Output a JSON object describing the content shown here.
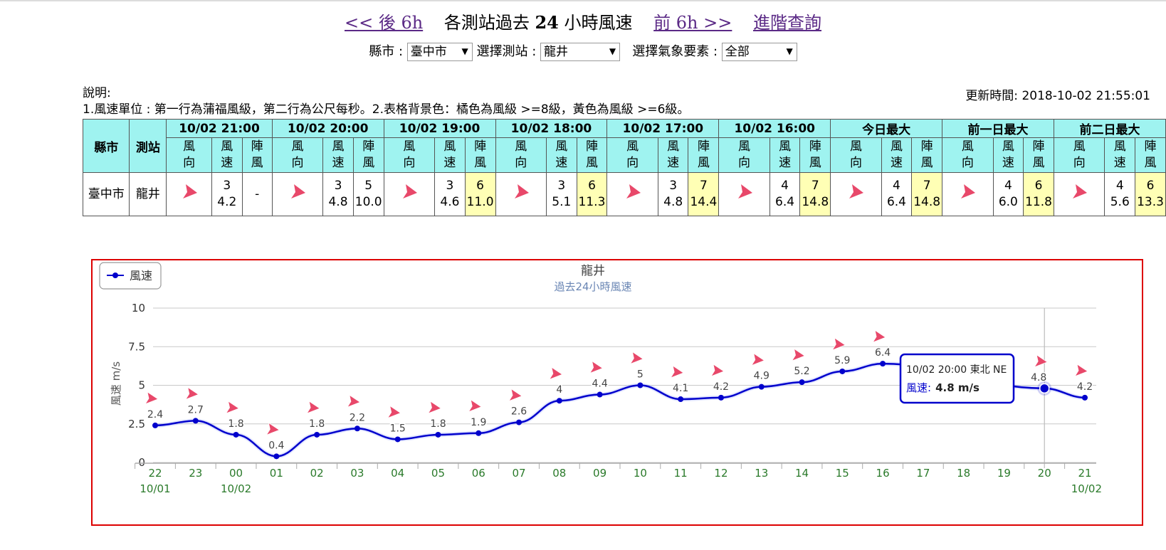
{
  "nav": {
    "back_link": "<< 後 6h",
    "title_prefix": "各測站過去",
    "title_num": "24",
    "title_suffix": "小時風速",
    "forward_link": "前 6h >>",
    "advanced_link": "進階查詢"
  },
  "selectors": {
    "county_label": "縣市 :",
    "county_value": "臺中市",
    "station_label": "選擇測站 :",
    "station_value": "龍井",
    "element_label": "選擇氣象要素 :",
    "element_value": "全部"
  },
  "notes": {
    "title": "說明:",
    "line1": "1.風速單位 : 第一行為蒲福風級，第二行為公尺每秒。2.表格背景色：橘色為風級 >=8級，黃色為風級 >=6級。",
    "updated": "更新時間: 2018-10-02 21:55:01"
  },
  "table": {
    "county_header": "縣市",
    "station_header": "測站",
    "groups": [
      "10/02 21:00",
      "10/02 20:00",
      "10/02 19:00",
      "10/02 18:00",
      "10/02 17:00",
      "10/02 16:00",
      "今日最大",
      "前一日最大",
      "前二日最大"
    ],
    "sub_dir": [
      "風",
      "向"
    ],
    "sub_speed": [
      "風",
      "速"
    ],
    "sub_gust": [
      "陣",
      "風"
    ],
    "county": "臺中市",
    "station": "龍井",
    "cells": [
      {
        "level": "3",
        "speed": "4.2",
        "gust_level": "-",
        "gust_speed": "",
        "highlight": false
      },
      {
        "level": "3",
        "speed": "4.8",
        "gust_level": "5",
        "gust_speed": "10.0",
        "highlight": false
      },
      {
        "level": "3",
        "speed": "4.6",
        "gust_level": "6",
        "gust_speed": "11.0",
        "highlight": true
      },
      {
        "level": "3",
        "speed": "5.1",
        "gust_level": "6",
        "gust_speed": "11.3",
        "highlight": true
      },
      {
        "level": "3",
        "speed": "4.8",
        "gust_level": "7",
        "gust_speed": "14.4",
        "highlight": true
      },
      {
        "level": "4",
        "speed": "6.4",
        "gust_level": "7",
        "gust_speed": "14.8",
        "highlight": true
      },
      {
        "level": "4",
        "speed": "6.4",
        "gust_level": "7",
        "gust_speed": "14.8",
        "highlight": true
      },
      {
        "level": "4",
        "speed": "6.0",
        "gust_level": "6",
        "gust_speed": "11.8",
        "highlight": true
      },
      {
        "level": "4",
        "speed": "5.6",
        "gust_level": "6",
        "gust_speed": "13.3",
        "highlight": true
      }
    ]
  },
  "colors": {
    "series": "#0000cc",
    "arrow": "#e8486a",
    "highlight_yellow": "#ffffb5",
    "header_cyan": "#9ff3f0",
    "link_purple": "#5b2a86",
    "chart_border": "#dd0000"
  },
  "tooltip": {
    "line1": "10/02 20:00 東北 NE",
    "series_label": "風速:",
    "value": "4.8 m/s"
  },
  "chart_data": {
    "type": "line",
    "title": "龍井",
    "subtitle": "過去24小時風速",
    "ylabel": "風速 m/s",
    "ylim": [
      0,
      10
    ],
    "yticks": [
      "0",
      "2.5",
      "5",
      "7.5",
      "10"
    ],
    "legend": "top-left",
    "grid": true,
    "x": [
      "22",
      "23",
      "00",
      "01",
      "02",
      "03",
      "04",
      "05",
      "06",
      "07",
      "08",
      "09",
      "10",
      "11",
      "12",
      "13",
      "14",
      "15",
      "16",
      "17",
      "18",
      "19",
      "20",
      "21"
    ],
    "date_labels": [
      "10/01",
      "",
      "10/02",
      "",
      "",
      "",
      "",
      "",
      "",
      "",
      "",
      "",
      "",
      "",
      "",
      "",
      "",
      "",
      "",
      "",
      "",
      "",
      "",
      "10/02"
    ],
    "series": [
      {
        "name": "風速",
        "values": [
          2.4,
          2.7,
          1.8,
          0.4,
          1.8,
          2.2,
          1.5,
          1.8,
          1.9,
          2.6,
          4.0,
          4.4,
          5.0,
          4.1,
          4.2,
          4.9,
          5.2,
          5.9,
          6.4,
          null,
          null,
          null,
          4.8,
          4.2
        ]
      }
    ],
    "value_labels": [
      "2.4",
      "2.7",
      "1.8",
      "0.4",
      "1.8",
      "2.2",
      "1.5",
      "1.8",
      "1.9",
      "2.6",
      "4",
      "4.4",
      "5",
      "4.1",
      "4.2",
      "4.9",
      "5.2",
      "5.9",
      "6.4",
      "",
      "",
      "",
      "4.8",
      "4.2"
    ],
    "highlighted_index": 22
  }
}
